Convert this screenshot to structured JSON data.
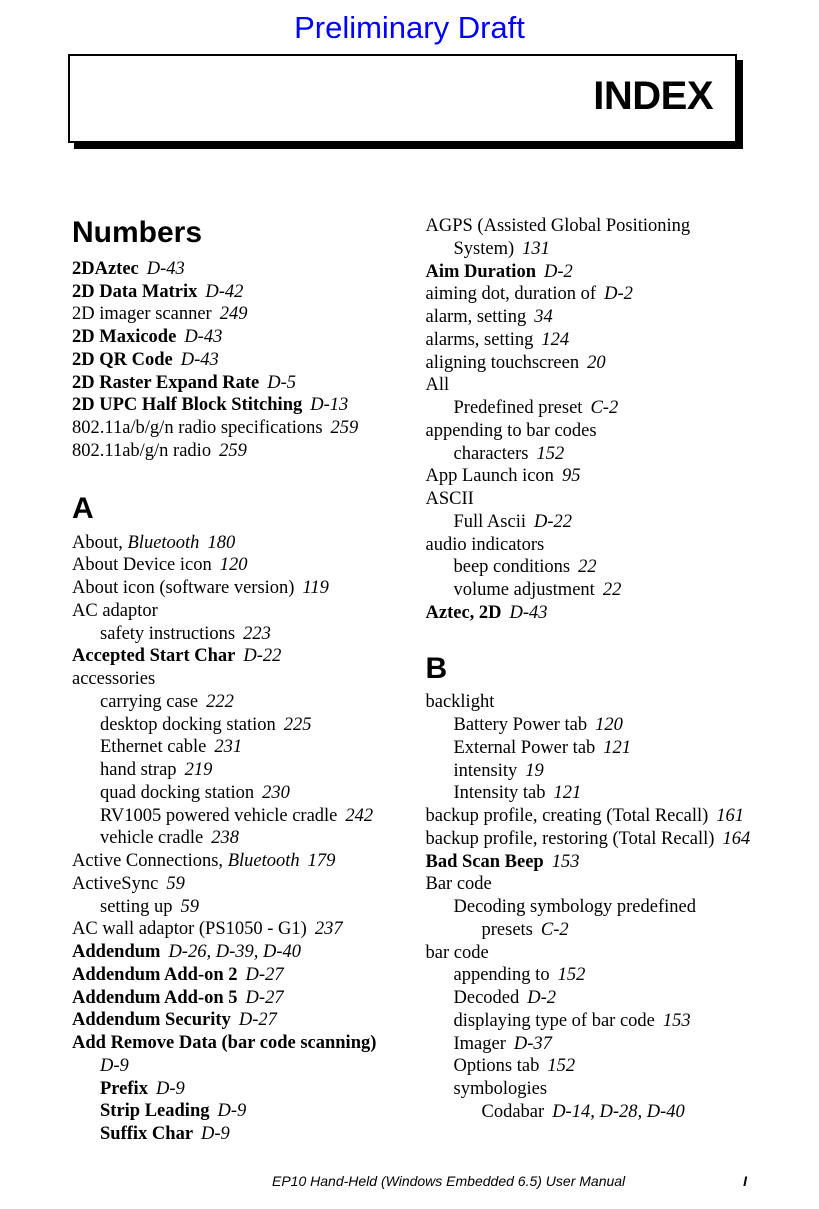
{
  "header": {
    "draft": "Preliminary Draft"
  },
  "indexBox": {
    "letter": "I",
    "rest": "NDEX"
  },
  "sections": {
    "numbers": {
      "head": "Numbers",
      "items": [
        {
          "bold": "2DAztec",
          "ref": "D-43"
        },
        {
          "bold": "2D Data Matrix",
          "ref": "D-42"
        },
        {
          "plain": "2D imager scanner",
          "ref": "249"
        },
        {
          "bold": "2D Maxicode",
          "ref": "D-43"
        },
        {
          "bold": "2D QR Code",
          "ref": "D-43"
        },
        {
          "bold": "2D Raster Expand Rate",
          "ref": "D-5"
        },
        {
          "bold": "2D UPC Half Block Stitching",
          "ref": "D-13"
        },
        {
          "plain": "802.11a/b/g/n radio specifications",
          "ref": "259"
        },
        {
          "plain": "802.11ab/g/n radio",
          "ref": "259"
        }
      ]
    },
    "a": {
      "head": "A",
      "items": [
        {
          "plain": "About, ",
          "italic": "Bluetooth",
          "ref": "180"
        },
        {
          "plain": "About Device icon",
          "ref": "120"
        },
        {
          "plain": "About icon (software version)",
          "ref": "119"
        },
        {
          "plain": "AC adaptor"
        },
        {
          "sub": 1,
          "plain": "safety instructions",
          "ref": "223"
        },
        {
          "bold": "Accepted Start Char",
          "ref": "D-22"
        },
        {
          "plain": "accessories"
        },
        {
          "sub": 1,
          "plain": "carrying case",
          "ref": "222"
        },
        {
          "sub": 1,
          "plain": "desktop docking station",
          "ref": "225"
        },
        {
          "sub": 1,
          "plain": "Ethernet cable",
          "ref": "231"
        },
        {
          "sub": 1,
          "plain": "hand strap",
          "ref": "219"
        },
        {
          "sub": 1,
          "plain": "quad docking station",
          "ref": "230"
        },
        {
          "sub": 1,
          "plain": "RV1005 powered vehicle cradle",
          "ref": "242"
        },
        {
          "sub": 1,
          "plain": "vehicle cradle",
          "ref": "238"
        },
        {
          "plain": "Active Connections, ",
          "italic": "Bluetooth",
          "ref": "179"
        },
        {
          "plain": "ActiveSync",
          "ref": "59"
        },
        {
          "sub": 1,
          "plain": "setting up",
          "ref": "59"
        },
        {
          "plain": "AC wall adaptor (PS1050 - G1)",
          "ref": "237"
        },
        {
          "bold": "Addendum",
          "ref": "D-26, D-39, D-40"
        },
        {
          "bold": "Addendum Add-on 2",
          "ref": "D-27"
        },
        {
          "bold": "Addendum Add-on 5",
          "ref": "D-27"
        },
        {
          "bold": "Addendum Security",
          "ref": "D-27"
        },
        {
          "bold": "Add Remove Data (bar code scanning)"
        },
        {
          "sub": 1,
          "italicref": "D-9",
          "refonly": true
        },
        {
          "sub": 1,
          "bold": "Prefix",
          "ref": "D-9"
        },
        {
          "sub": 1,
          "bold": "Strip Leading",
          "ref": "D-9"
        },
        {
          "sub": 1,
          "bold": "Suffix Char",
          "ref": "D-9"
        }
      ]
    },
    "aRight": {
      "items": [
        {
          "hanging": true,
          "plain": "AGPS (Assisted Global Positioning System)",
          "ref": "131"
        },
        {
          "bold": "Aim Duration",
          "ref": "D-2"
        },
        {
          "plain": "aiming dot, duration of",
          "ref": "D-2"
        },
        {
          "plain": "alarm, setting",
          "ref": "34"
        },
        {
          "plain": "alarms, setting",
          "ref": "124"
        },
        {
          "plain": "aligning touchscreen",
          "ref": "20"
        },
        {
          "plain": "All"
        },
        {
          "sub": 1,
          "plain": "Predefined preset",
          "ref": "C-2"
        },
        {
          "plain": "appending to bar codes"
        },
        {
          "sub": 1,
          "plain": "characters",
          "ref": "152"
        },
        {
          "plain": "App Launch icon",
          "ref": "95"
        },
        {
          "plain": "ASCII"
        },
        {
          "sub": 1,
          "plain": "Full Ascii",
          "ref": "D-22"
        },
        {
          "plain": "audio indicators"
        },
        {
          "sub": 1,
          "plain": "beep conditions",
          "ref": "22"
        },
        {
          "sub": 1,
          "plain": "volume adjustment",
          "ref": "22"
        },
        {
          "bold": "Aztec, 2D",
          "ref": "D-43"
        }
      ]
    },
    "b": {
      "head": "B",
      "items": [
        {
          "plain": "backlight"
        },
        {
          "sub": 1,
          "plain": "Battery Power tab",
          "ref": "120"
        },
        {
          "sub": 1,
          "plain": "External Power tab",
          "ref": "121"
        },
        {
          "sub": 1,
          "plain": "intensity",
          "ref": "19"
        },
        {
          "sub": 1,
          "plain": "Intensity tab",
          "ref": "121"
        },
        {
          "plain": "backup profile, creating (Total Recall)",
          "ref": "161"
        },
        {
          "hanging": true,
          "plain": "backup profile, restoring (Total Recall)",
          "ref": "164"
        },
        {
          "bold": "Bad Scan Beep",
          "ref": "153"
        },
        {
          "plain": "Bar code"
        },
        {
          "sub": 1,
          "hanging": true,
          "plain": "Decoding symbology predefined presets",
          "ref": "C-2"
        },
        {
          "plain": "bar code"
        },
        {
          "sub": 1,
          "plain": "appending to",
          "ref": "152"
        },
        {
          "sub": 1,
          "plain": "Decoded",
          "ref": "D-2"
        },
        {
          "sub": 1,
          "plain": "displaying type of bar code",
          "ref": "153"
        },
        {
          "sub": 1,
          "plain": "Imager",
          "ref": "D-37"
        },
        {
          "sub": 1,
          "plain": "Options tab",
          "ref": "152"
        },
        {
          "sub": 1,
          "plain": "symbologies"
        },
        {
          "sub": 2,
          "plain": "Codabar",
          "ref": "D-14, D-28, D-40"
        }
      ]
    }
  },
  "footer": {
    "center": "EP10 Hand-Held (Windows Embedded 6.5) User Manual",
    "page": "I"
  }
}
